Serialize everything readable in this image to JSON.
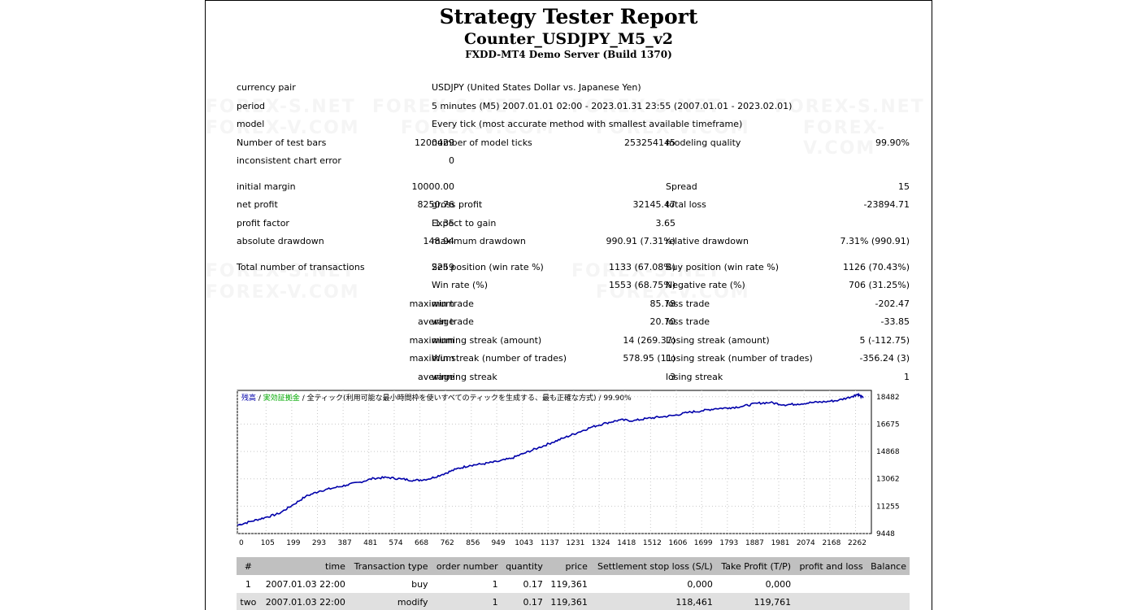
{
  "header": {
    "title": "Strategy Tester Report",
    "ea_name": "Counter_USDJPY_M5_v2",
    "server": "FXDD-MT4 Demo Server (Build 1370)"
  },
  "summary": {
    "currency_pair_label": "currency pair",
    "currency_pair_value": "USDJPY (United States Dollar vs. Japanese Yen)",
    "period_label": "period",
    "period_value": "5 minutes (M5) 2007.01.01 02:00 - 2023.01.31 23:55 (2007.01.01 - 2023.02.01)",
    "model_label": "model",
    "model_value": "Every tick (most accurate method with smallest available timeframe)",
    "test_bars_label": "Number of test bars",
    "test_bars_value": "1200429",
    "model_ticks_label": "number of model ticks",
    "model_ticks_value": "253254145",
    "modeling_quality_label": "modeling quality",
    "modeling_quality_value": "99.90%",
    "inconsistent_label": "inconsistent chart error",
    "inconsistent_value": "0",
    "initial_margin_label": "initial margin",
    "initial_margin_value": "10000.00",
    "spread_label": "Spread",
    "spread_value": "15",
    "net_profit_label": "net profit",
    "net_profit_value": "8250.76",
    "gross_profit_label": "gross profit",
    "gross_profit_value": "32145.47",
    "total_loss_label": "total loss",
    "total_loss_value": "-23894.71",
    "profit_factor_label": "profit factor",
    "profit_factor_value": "1.35",
    "expect_label": "Expect to gain",
    "expect_value": "3.65",
    "abs_dd_label": "absolute drawdown",
    "abs_dd_value": "148.94",
    "max_dd_label": "maximum drawdown",
    "max_dd_value": "990.91 (7.31%)",
    "rel_dd_label": "relative drawdown",
    "rel_dd_value": "7.31% (990.91)",
    "total_tx_label": "Total number of transactions",
    "total_tx_value": "2259",
    "sell_label": "Sell position (win rate %)",
    "sell_value": "1133 (67.08%)",
    "buy_label": "Buy position (win rate %)",
    "buy_value": "1126 (70.43%)",
    "win_rate_label": "Win rate (%)",
    "win_rate_value": "1553 (68.75%)",
    "neg_rate_label": "Negative rate (%)",
    "neg_rate_value": "706 (31.25%)",
    "maximum": "maximum",
    "average": "average",
    "max_win_label": "win trade",
    "max_win_value": "85.78",
    "max_loss_label": "loss trade",
    "max_loss_value": "-202.47",
    "avg_win_label": "win trade",
    "avg_win_value": "20.70",
    "avg_loss_label": "loss trade",
    "avg_loss_value": "-33.85",
    "max_wstreak_amt_label": "winning streak (amount)",
    "max_wstreak_amt_value": "14 (269.37)",
    "max_lstreak_amt_label": "Losing streak (amount)",
    "max_lstreak_amt_value": "5 (-112.75)",
    "max_wstreak_n_label": "Win streak (number of trades)",
    "max_wstreak_n_value": "578.95 (11)",
    "max_lstreak_n_label": "Losing streak (number of trades)",
    "max_lstreak_n_value": "-356.24 (3)",
    "avg_wstreak_label": "winning streak",
    "avg_wstreak_value": "3",
    "avg_lstreak_label": "losing streak",
    "avg_lstreak_value": "1"
  },
  "chart_data": {
    "type": "line",
    "legend_balance": "残高",
    "legend_lots": "実効証拠金",
    "legend_model": "全ティック(利用可能な最小時間枠を使いすべてのティックを生成する、最も正確な方式)",
    "legend_quality": "99.90%",
    "x_ticks": [
      "0",
      "105",
      "199",
      "293",
      "387",
      "481",
      "574",
      "668",
      "762",
      "856",
      "949",
      "1043",
      "1137",
      "1231",
      "1324",
      "1418",
      "1512",
      "1606",
      "1699",
      "1793",
      "1887",
      "1981",
      "2074",
      "2168",
      "2262"
    ],
    "y_ticks": [
      "18482",
      "16675",
      "14868",
      "13062",
      "11255",
      "9448"
    ],
    "xlim": [
      0,
      2320
    ],
    "ylim": [
      9448,
      18900
    ],
    "series": [
      {
        "color": "#0000aa",
        "x": [
          0,
          50,
          100,
          150,
          200,
          250,
          300,
          350,
          400,
          450,
          500,
          550,
          600,
          650,
          700,
          750,
          800,
          850,
          900,
          950,
          1000,
          1050,
          1100,
          1150,
          1200,
          1250,
          1300,
          1350,
          1400,
          1450,
          1500,
          1550,
          1600,
          1650,
          1700,
          1750,
          1800,
          1850,
          1900,
          1950,
          2000,
          2050,
          2100,
          2150,
          2200,
          2250,
          2270,
          2290
        ],
        "y": [
          10000,
          10250,
          10500,
          10750,
          11300,
          11900,
          12250,
          12450,
          12650,
          12850,
          13100,
          13150,
          13050,
          12950,
          13050,
          13350,
          13700,
          13950,
          14050,
          14200,
          14400,
          14750,
          15100,
          15450,
          15800,
          16150,
          16500,
          16750,
          16950,
          16900,
          17050,
          17150,
          17250,
          17450,
          17550,
          17700,
          17750,
          17850,
          18050,
          18100,
          17950,
          18000,
          18100,
          18150,
          18250,
          18500,
          18650,
          18400
        ]
      }
    ]
  },
  "trades": {
    "headers": [
      "#",
      "time",
      "Transaction type",
      "order number",
      "quantity",
      "price",
      "Settlement stop loss (S/L)",
      "Take Profit (T/P)",
      "profit and loss",
      "Balance"
    ],
    "rows": [
      [
        "1",
        "2007.01.03 22:00",
        "buy",
        "1",
        "0.17",
        "119,361",
        "0,000",
        "0,000",
        "",
        ""
      ],
      [
        "two",
        "2007.01.03 22:00",
        "modify",
        "1",
        "0.17",
        "119,361",
        "118,461",
        "119,761",
        "",
        ""
      ]
    ]
  },
  "watermarks": [
    "FOREX-S.NET",
    "FOREX-V.COM"
  ]
}
